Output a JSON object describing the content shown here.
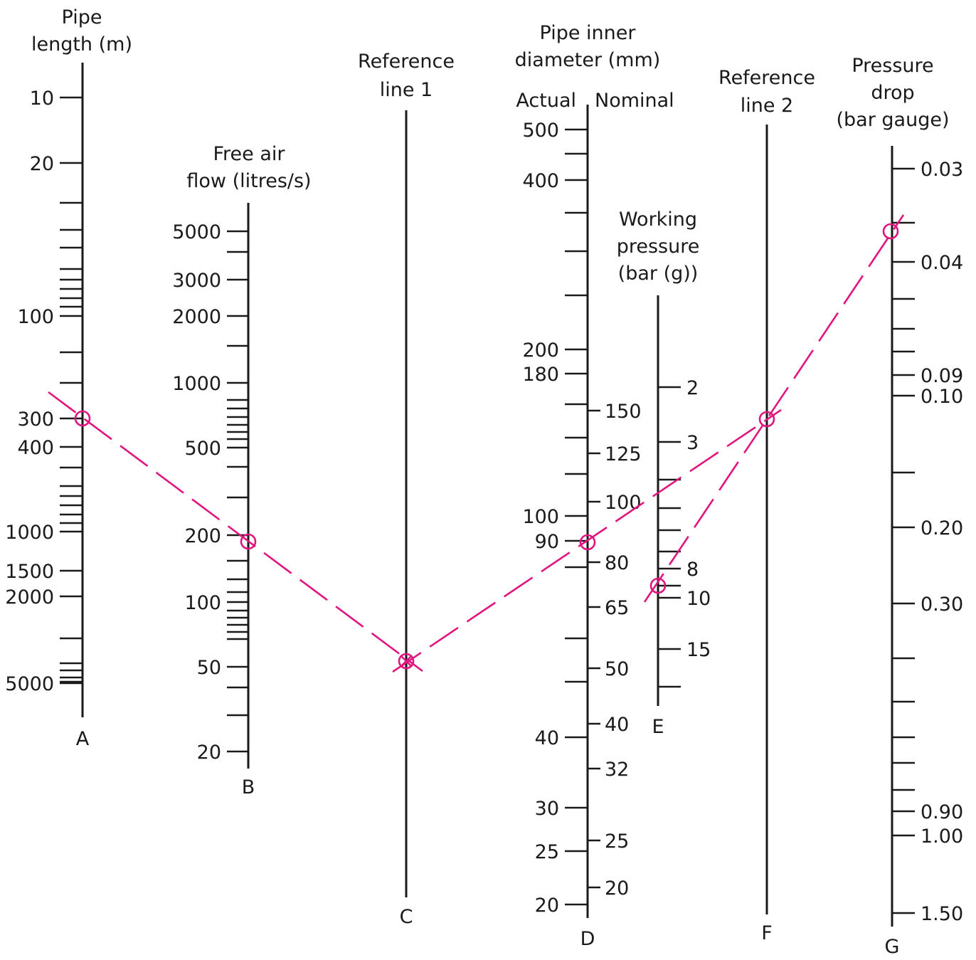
{
  "titles": {
    "A": [
      "Pipe",
      "length (m)"
    ],
    "B": [
      "Free air",
      "flow (litres/s)"
    ],
    "C": [
      "Reference",
      "line 1"
    ],
    "D": [
      "Pipe inner",
      "diameter (mm)"
    ],
    "D_left": "Actual",
    "D_right": "Nominal",
    "E": [
      "Working",
      "pressure",
      "(bar (g))"
    ],
    "F": [
      "Reference",
      "line 2"
    ],
    "G": [
      "Pressure",
      "drop",
      "(bar gauge)"
    ]
  },
  "scale_letters": {
    "A": "A",
    "B": "B",
    "C": "C",
    "D": "D",
    "E": "E",
    "F": "F",
    "G": "G"
  },
  "scales": {
    "A": {
      "labeled": [
        "10",
        "20",
        "100",
        "300",
        "400",
        "1000",
        "1500",
        "2000",
        "5000"
      ],
      "minor_count": 21
    },
    "B": {
      "labeled": [
        "5000",
        "3000",
        "2000",
        "1000",
        "500",
        "200",
        "100",
        "50",
        "20"
      ],
      "minor_count": 20
    },
    "D_actual": {
      "labeled": [
        "500",
        "400",
        "200",
        "180",
        "100",
        "90",
        "40",
        "30",
        "25",
        "20"
      ],
      "minor_count": 10
    },
    "D_nominal": {
      "labeled": [
        "150",
        "125",
        "100",
        "80",
        "65",
        "50",
        "40",
        "32",
        "25",
        "20"
      ]
    },
    "E": {
      "labeled": [
        "2",
        "3",
        "8",
        "10",
        "15"
      ],
      "minor_count": 6
    },
    "G": {
      "labeled": [
        "0.03",
        "0.04",
        "0.09",
        "0.10",
        "0.20",
        "0.30",
        "0.90",
        "1.00",
        "1.50"
      ],
      "minor_count": 9
    }
  },
  "construction_line_color": "#e2157f",
  "markers": [
    "circle",
    "circle",
    "crossed-circle",
    "circle",
    "circle",
    "circle",
    "circle"
  ]
}
